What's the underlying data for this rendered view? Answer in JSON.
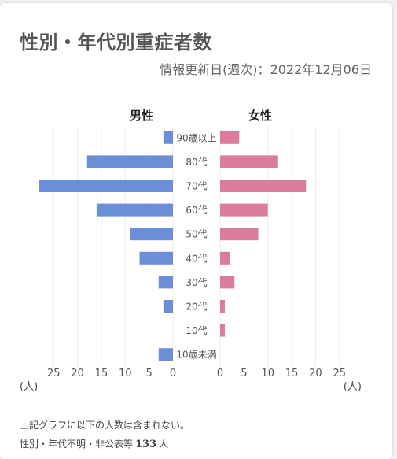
{
  "title": "性別・年代別重症者数",
  "updated": "情報更新日(週次)：2022年12月06日",
  "chart_data": {
    "type": "bar",
    "orientation": "horizontal-butterfly",
    "categories": [
      "90歳以上",
      "80代",
      "70代",
      "60代",
      "50代",
      "40代",
      "30代",
      "20代",
      "10代",
      "10歳未満"
    ],
    "series": [
      {
        "name": "男性",
        "values": [
          2,
          18,
          28,
          16,
          9,
          7,
          3,
          2,
          0,
          3
        ],
        "color": "#6a8fd8"
      },
      {
        "name": "女性",
        "values": [
          4,
          12,
          18,
          10,
          8,
          2,
          3,
          1,
          1,
          0
        ],
        "color": "#da7d9c"
      }
    ],
    "male_ticks": [
      "25",
      "20",
      "15",
      "10",
      "5",
      "0"
    ],
    "female_ticks": [
      "0",
      "5",
      "10",
      "15",
      "20",
      "25"
    ],
    "unit_left": "(人)",
    "unit_right": "(人)",
    "xlim": [
      0,
      28.5
    ],
    "grid": true
  },
  "notes": {
    "line1": "上記グラフに以下の人数は含まれない。",
    "line2_prefix": "性別・年代不明・非公表等",
    "line2_value": "133",
    "line2_unit": "人"
  }
}
